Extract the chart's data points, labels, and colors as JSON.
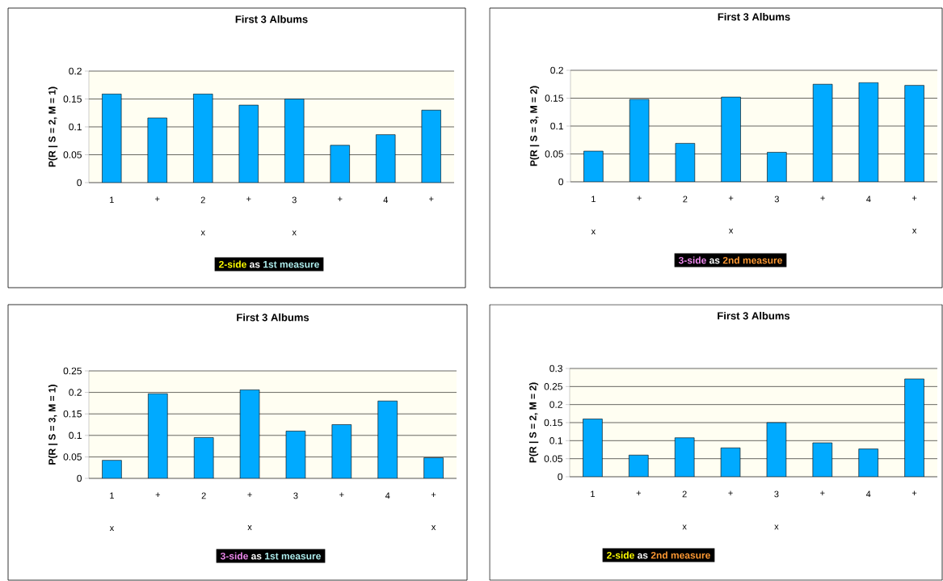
{
  "chart_data": [
    {
      "type": "bar",
      "title": "First 3 Albums",
      "ylabel": "P(R | S = 2, M = 1)",
      "categories": [
        "1",
        "+",
        "2 x",
        "+",
        "3 x",
        "+",
        "4",
        "+"
      ],
      "values": [
        0.159,
        0.116,
        0.159,
        0.139,
        0.15,
        0.067,
        0.086,
        0.13
      ],
      "color": "#00aaff",
      "ylim": [
        0,
        0.2
      ],
      "yticks": [
        0,
        0.05,
        0.1,
        0.15,
        0.2
      ],
      "grid": "y",
      "annotations": [
        "2-side",
        "as",
        "1st measure"
      ]
    },
    {
      "type": "bar",
      "title": "First 3 Albums",
      "ylabel": "P(R | S = 3, M = 2)",
      "categories": [
        "1 x",
        "+",
        "2",
        "+ x",
        "3",
        "+",
        "4",
        "+ x"
      ],
      "values": [
        0.055,
        0.148,
        0.069,
        0.152,
        0.053,
        0.175,
        0.178,
        0.173
      ],
      "color": "#00aaff",
      "ylim": [
        0,
        0.2
      ],
      "yticks": [
        0,
        0.05,
        0.1,
        0.15,
        0.2
      ],
      "grid": "y",
      "annotations": [
        "3-side",
        "as",
        "2nd measure"
      ]
    },
    {
      "type": "bar",
      "title": "First 3 Albums",
      "ylabel": "P(R | S = 3, M = 1)",
      "categories": [
        "1 x",
        "+",
        "2",
        "+ x",
        "3",
        "+",
        "4",
        "+ x"
      ],
      "values": [
        0.042,
        0.197,
        0.095,
        0.206,
        0.11,
        0.125,
        0.18,
        0.048
      ],
      "color": "#00aaff",
      "ylim": [
        0,
        0.25
      ],
      "yticks": [
        0,
        0.05,
        0.1,
        0.15,
        0.2,
        0.25
      ],
      "grid": "y",
      "annotations": [
        "3-side",
        "as",
        "1st measure"
      ]
    },
    {
      "type": "bar",
      "title": "First 3 Albums",
      "ylabel": "P(R | S = 2, M = 2)",
      "categories": [
        "1",
        "+",
        "2 x",
        "+",
        "3 x",
        "+",
        "4",
        "+"
      ],
      "values": [
        0.16,
        0.06,
        0.108,
        0.08,
        0.15,
        0.094,
        0.077,
        0.271
      ],
      "color": "#00aaff",
      "ylim": [
        0,
        0.3
      ],
      "yticks": [
        0,
        0.05,
        0.1,
        0.15,
        0.2,
        0.25,
        0.3
      ],
      "grid": "y",
      "annotations": [
        "2-side",
        "as",
        "2nd measure"
      ]
    }
  ]
}
